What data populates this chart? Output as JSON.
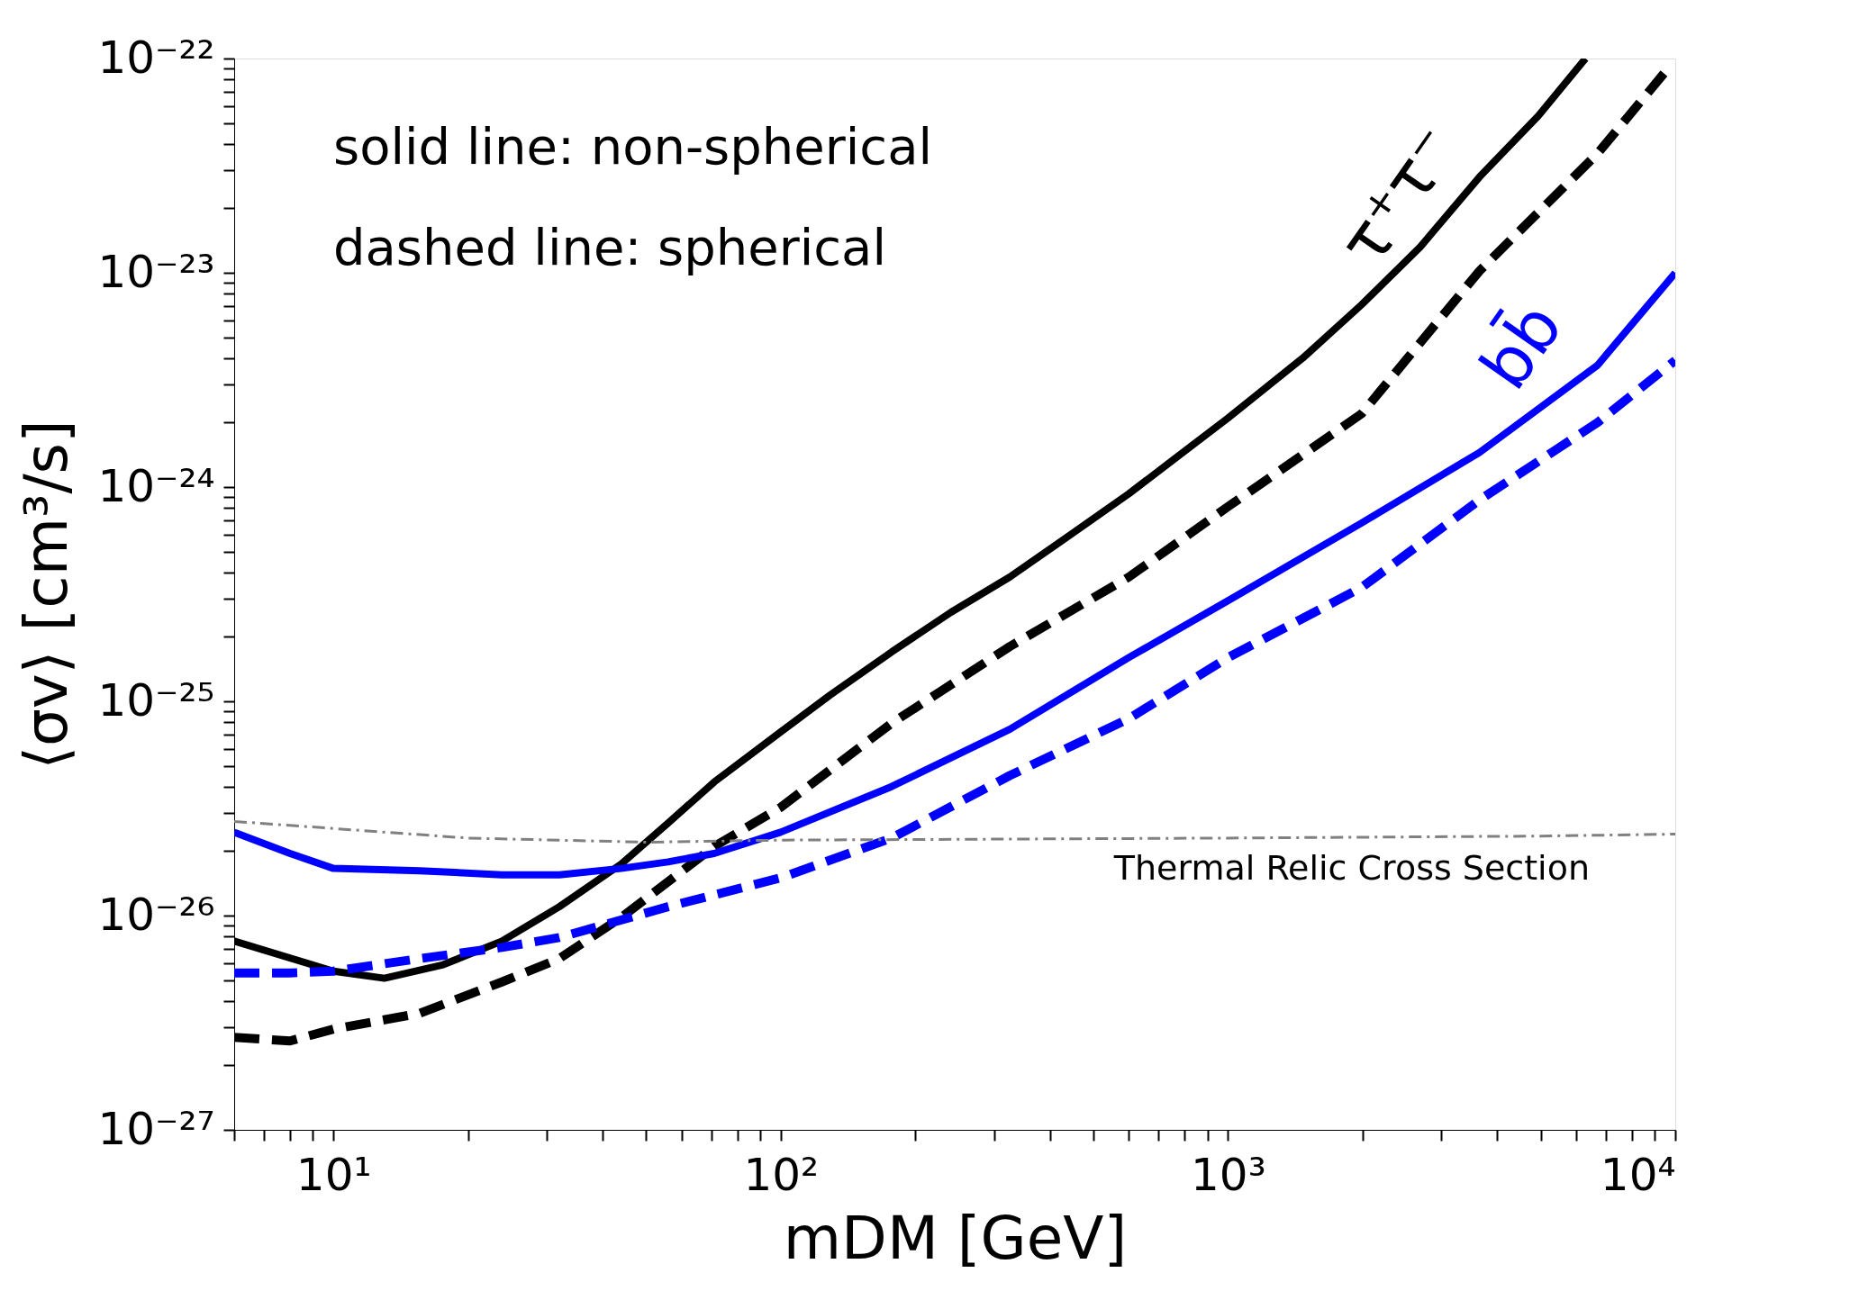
{
  "chart_data": {
    "type": "line",
    "xlabel": "mDM [GeV]",
    "ylabel": "⟨σv⟩ [cm³/s]",
    "log": "xy",
    "grid": false,
    "xlim": [
      6,
      10000
    ],
    "ylim": [
      1e-27,
      1e-22
    ],
    "xticks": [
      {
        "value": 6,
        "label": null
      },
      {
        "value": 7,
        "label": null
      },
      {
        "value": 8,
        "label": null
      },
      {
        "value": 9,
        "label": null
      },
      {
        "value": 10,
        "label": "10¹"
      },
      {
        "value": 20,
        "label": null
      },
      {
        "value": 30,
        "label": null
      },
      {
        "value": 40,
        "label": null
      },
      {
        "value": 50,
        "label": null
      },
      {
        "value": 60,
        "label": null
      },
      {
        "value": 70,
        "label": null
      },
      {
        "value": 80,
        "label": null
      },
      {
        "value": 90,
        "label": null
      },
      {
        "value": 100,
        "label": "10²"
      },
      {
        "value": 200,
        "label": null
      },
      {
        "value": 300,
        "label": null
      },
      {
        "value": 400,
        "label": null
      },
      {
        "value": 500,
        "label": null
      },
      {
        "value": 600,
        "label": null
      },
      {
        "value": 700,
        "label": null
      },
      {
        "value": 800,
        "label": null
      },
      {
        "value": 900,
        "label": null
      },
      {
        "value": 1000,
        "label": "10³"
      },
      {
        "value": 2000,
        "label": null
      },
      {
        "value": 3000,
        "label": null
      },
      {
        "value": 4000,
        "label": null
      },
      {
        "value": 5000,
        "label": null
      },
      {
        "value": 6000,
        "label": null
      },
      {
        "value": 7000,
        "label": null
      },
      {
        "value": 8000,
        "label": null
      },
      {
        "value": 9000,
        "label": null
      },
      {
        "value": 10000,
        "label": "10⁴"
      }
    ],
    "yticks": [
      {
        "value": 1e-27,
        "label": "10⁻²⁷"
      },
      {
        "value": 2e-27,
        "label": null
      },
      {
        "value": 3e-27,
        "label": null
      },
      {
        "value": 4e-27,
        "label": null
      },
      {
        "value": 5e-27,
        "label": null
      },
      {
        "value": 6e-27,
        "label": null
      },
      {
        "value": 7e-27,
        "label": null
      },
      {
        "value": 8e-27,
        "label": null
      },
      {
        "value": 9e-27,
        "label": null
      },
      {
        "value": 1e-26,
        "label": "10⁻²⁶"
      },
      {
        "value": 2e-26,
        "label": null
      },
      {
        "value": 3e-26,
        "label": null
      },
      {
        "value": 4e-26,
        "label": null
      },
      {
        "value": 5e-26,
        "label": null
      },
      {
        "value": 6e-26,
        "label": null
      },
      {
        "value": 7e-26,
        "label": null
      },
      {
        "value": 8e-26,
        "label": null
      },
      {
        "value": 9e-26,
        "label": null
      },
      {
        "value": 1e-25,
        "label": "10⁻²⁵"
      },
      {
        "value": 2e-25,
        "label": null
      },
      {
        "value": 3e-25,
        "label": null
      },
      {
        "value": 4e-25,
        "label": null
      },
      {
        "value": 5e-25,
        "label": null
      },
      {
        "value": 6e-25,
        "label": null
      },
      {
        "value": 7e-25,
        "label": null
      },
      {
        "value": 8e-25,
        "label": null
      },
      {
        "value": 9e-25,
        "label": null
      },
      {
        "value": 1e-24,
        "label": "10⁻²⁴"
      },
      {
        "value": 2e-24,
        "label": null
      },
      {
        "value": 3e-24,
        "label": null
      },
      {
        "value": 4e-24,
        "label": null
      },
      {
        "value": 5e-24,
        "label": null
      },
      {
        "value": 6e-24,
        "label": null
      },
      {
        "value": 7e-24,
        "label": null
      },
      {
        "value": 8e-24,
        "label": null
      },
      {
        "value": 9e-24,
        "label": null
      },
      {
        "value": 1e-23,
        "label": "10⁻²³"
      },
      {
        "value": 2e-23,
        "label": null
      },
      {
        "value": 3e-23,
        "label": null
      },
      {
        "value": 4e-23,
        "label": null
      },
      {
        "value": 5e-23,
        "label": null
      },
      {
        "value": 6e-23,
        "label": null
      },
      {
        "value": 7e-23,
        "label": null
      },
      {
        "value": 8e-23,
        "label": null
      },
      {
        "value": 9e-23,
        "label": null
      },
      {
        "value": 1e-22,
        "label": "10⁻²²"
      }
    ],
    "series": [
      {
        "color": "#000000",
        "line_style": "solid",
        "x": [
          6,
          10,
          13,
          17.6,
          23.8,
          32,
          44,
          56,
          71,
          100,
          129,
          177,
          240,
          325,
          440,
          600,
          1000,
          1470,
          1990,
          2690,
          3650,
          4940,
          6300
        ],
        "values": [
          7.6e-27,
          5.5e-27,
          5.1e-27,
          5.9e-27,
          7.6e-27,
          1.1e-26,
          1.74e-26,
          2.7e-26,
          4.2e-26,
          7.2e-26,
          1.07e-25,
          1.7e-25,
          2.6e-25,
          3.8e-25,
          5.9e-25,
          9.3e-25,
          2.1e-24,
          4e-24,
          7.1e-24,
          1.32e-23,
          2.8e-23,
          5.4e-23,
          1e-22
        ]
      },
      {
        "color": "#000000",
        "line_style": "dashed",
        "x": [
          6,
          8,
          10,
          15.6,
          23.8,
          32,
          44,
          71,
          100,
          177,
          325,
          600,
          1000,
          1990,
          3650,
          6700,
          9600
        ],
        "values": [
          2.7e-27,
          2.6e-27,
          2.95e-27,
          3.5e-27,
          4.9e-27,
          6.3e-27,
          9.8e-27,
          2.1e-26,
          3.2e-26,
          7.9e-26,
          1.8e-25,
          3.8e-25,
          8.1e-25,
          2.2e-24,
          1.02e-23,
          3.6e-23,
          8.9e-23
        ]
      },
      {
        "color": "#0000ff",
        "line_style": "solid",
        "x": [
          6,
          8,
          10,
          15.6,
          23.8,
          32,
          44,
          56,
          71,
          100,
          177,
          325,
          600,
          1000,
          1990,
          3650,
          6700,
          10000
        ],
        "values": [
          2.45e-26,
          1.95e-26,
          1.66e-26,
          1.62e-26,
          1.55e-26,
          1.55e-26,
          1.66e-26,
          1.78e-26,
          1.95e-26,
          2.45e-26,
          4e-26,
          7.4e-26,
          1.6e-25,
          2.95e-25,
          6.8e-25,
          1.45e-24,
          3.7e-24,
          1e-23
        ]
      },
      {
        "color": "#0000ff",
        "line_style": "dashed",
        "x": [
          6,
          8,
          10,
          15.6,
          23.8,
          32,
          56,
          100,
          177,
          325,
          600,
          1000,
          1990,
          3650,
          6700,
          10000
        ],
        "values": [
          5.4e-27,
          5.4e-27,
          5.5e-27,
          6.3e-27,
          7.1e-27,
          7.9e-27,
          1.1e-26,
          1.5e-26,
          2.3e-26,
          4.5e-26,
          8.3e-26,
          1.6e-25,
          3.4e-25,
          8.7e-25,
          2e-24,
          3.9e-24
        ]
      },
      {
        "name": "Thermal Relic Cross Section",
        "color": "#808080",
        "line_style": "dashdot",
        "x": [
          6,
          20,
          50,
          100,
          1000,
          5000,
          10000
        ],
        "values": [
          2.75e-26,
          2.3e-26,
          2.2e-26,
          2.25e-26,
          2.3e-26,
          2.35e-26,
          2.4e-26
        ]
      }
    ],
    "annotations": [
      "solid line: non-spherical",
      "dashed line: spherical",
      "τ⁺τ⁻",
      "bb̄"
    ]
  }
}
